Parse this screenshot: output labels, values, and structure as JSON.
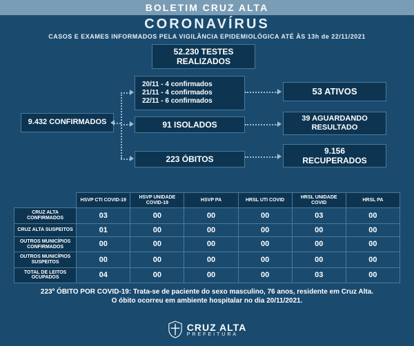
{
  "colors": {
    "background": "#1a4a6e",
    "box_bg": "#0d3552",
    "box_border": "#4a7a9a",
    "band_bg": "#7a9db5",
    "text": "#ffffff",
    "connector": "#9fbdd0"
  },
  "header": {
    "band": "BOLETIM CRUZ ALTA",
    "title": "CORONAVÍRUS",
    "subtitle": "CASOS E EXAMES INFORMADOS PELA VIGILÂNCIA EPIDEMIOLÓGICA ATÉ ÀS 13h de 22/11/2021"
  },
  "flow": {
    "tests": {
      "line1": "52.230 TESTES",
      "line2": "REALIZADOS"
    },
    "confirmed": "9.432 CONFIRMADOS",
    "daily": [
      "20/11 - 4 confirmados",
      "21/11 - 4 confirmados",
      "22/11 - 6 confirmados"
    ],
    "isolated": "91 ISOLADOS",
    "deaths": "223 ÓBITOS",
    "active": "53 ATIVOS",
    "waiting": {
      "line1": "39 AGUARDANDO",
      "line2": "RESULTADO"
    },
    "recovered": {
      "line1": "9.156",
      "line2": "RECUPERADOS"
    }
  },
  "table": {
    "columns": [
      "HSVP CTI COVID-19",
      "HSVP UNIDADE COVID-19",
      "HSVP PA",
      "HRSL UTI COVID",
      "HRSL UNIDADE COVID",
      "HRSL PA"
    ],
    "rows": [
      {
        "label": "CRUZ ALTA CONFIRMADOS",
        "cells": [
          "03",
          "00",
          "00",
          "00",
          "03",
          "00"
        ]
      },
      {
        "label": "CRUZ ALTA SUSPEITOS",
        "cells": [
          "01",
          "00",
          "00",
          "00",
          "00",
          "00"
        ]
      },
      {
        "label": "OUTROS MUNICÍPIOS CONFIRMADOS",
        "cells": [
          "00",
          "00",
          "00",
          "00",
          "00",
          "00"
        ]
      },
      {
        "label": "OUTROS MUNICÍPIOS SUSPEITOS",
        "cells": [
          "00",
          "00",
          "00",
          "00",
          "00",
          "00"
        ]
      },
      {
        "label": "TOTAL DE LEITOS OCUPADOS",
        "cells": [
          "04",
          "00",
          "00",
          "00",
          "03",
          "00"
        ]
      }
    ]
  },
  "footnote": {
    "line1": "223º ÓBITO POR COVID-19: Trata-se de paciente do sexo masculino, 76 anos, residente em Cruz Alta.",
    "line2": "O óbito ocorreu em ambiente hospitalar no dia 20/11/2021."
  },
  "footer": {
    "main": "CRUZ ALTA",
    "sub": "PREFEITURA"
  }
}
